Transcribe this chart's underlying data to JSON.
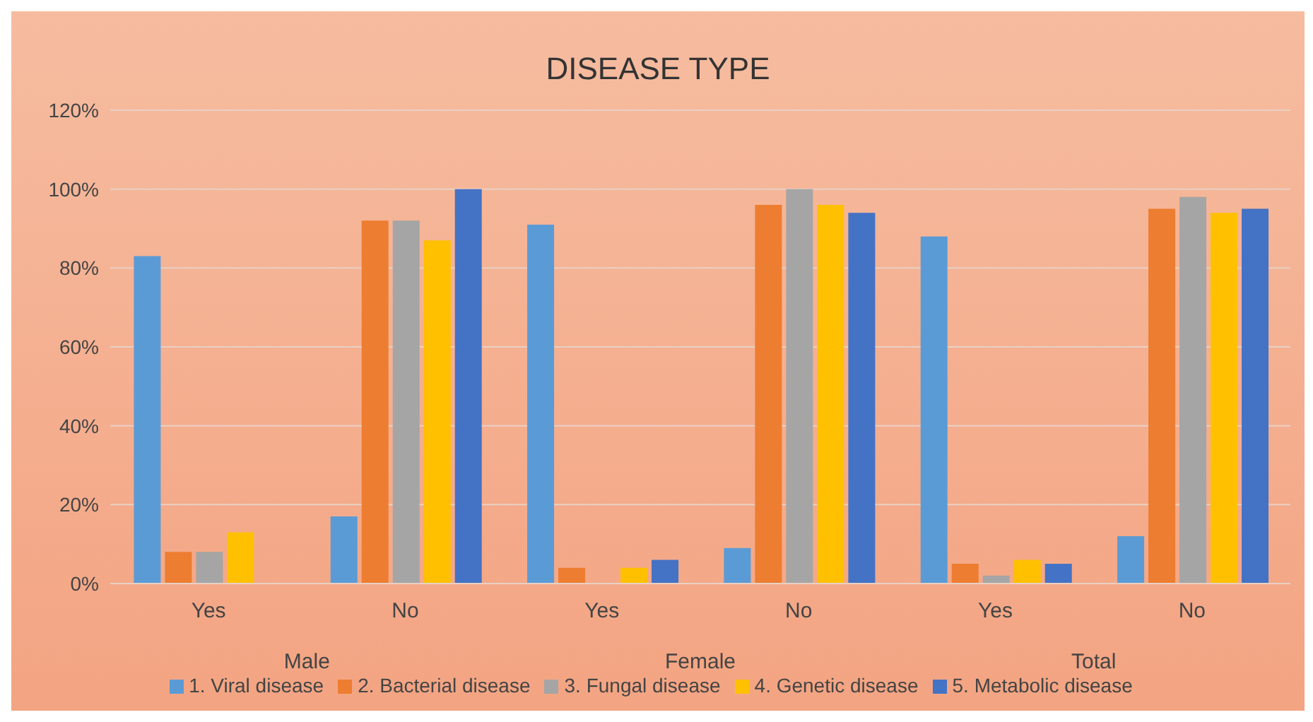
{
  "chart_data": {
    "type": "bar",
    "title": "DISEASE TYPE",
    "categories": [
      "Yes",
      "No",
      "Yes",
      "No",
      "Yes",
      "No"
    ],
    "annotations": [
      "Male",
      "Female",
      "Total"
    ],
    "series": [
      {
        "name": "1. Viral disease",
        "color": "#5b9bd5",
        "values": [
          83,
          17,
          91,
          9,
          88,
          12
        ]
      },
      {
        "name": "2. Bacterial disease",
        "color": "#ed7d31",
        "values": [
          8,
          92,
          4,
          96,
          5,
          95
        ]
      },
      {
        "name": "3. Fungal disease",
        "color": "#a5a5a5",
        "values": [
          8,
          92,
          0,
          100,
          2,
          98
        ]
      },
      {
        "name": "4. Genetic disease",
        "color": "#ffc000",
        "values": [
          13,
          87,
          4,
          96,
          6,
          94
        ]
      },
      {
        "name": "5. Metabolic disease",
        "color": "#4472c4",
        "values": [
          0,
          100,
          6,
          94,
          5,
          95
        ]
      }
    ],
    "ylim": [
      0,
      120
    ],
    "yticks": [
      {
        "value": 0,
        "label": "0%"
      },
      {
        "value": 20,
        "label": "20%"
      },
      {
        "value": 40,
        "label": "40%"
      },
      {
        "value": 60,
        "label": "60%"
      },
      {
        "value": 80,
        "label": "80%"
      },
      {
        "value": 100,
        "label": "100%"
      },
      {
        "value": 120,
        "label": "120%"
      }
    ],
    "grid": "y",
    "legend": "bottom"
  }
}
